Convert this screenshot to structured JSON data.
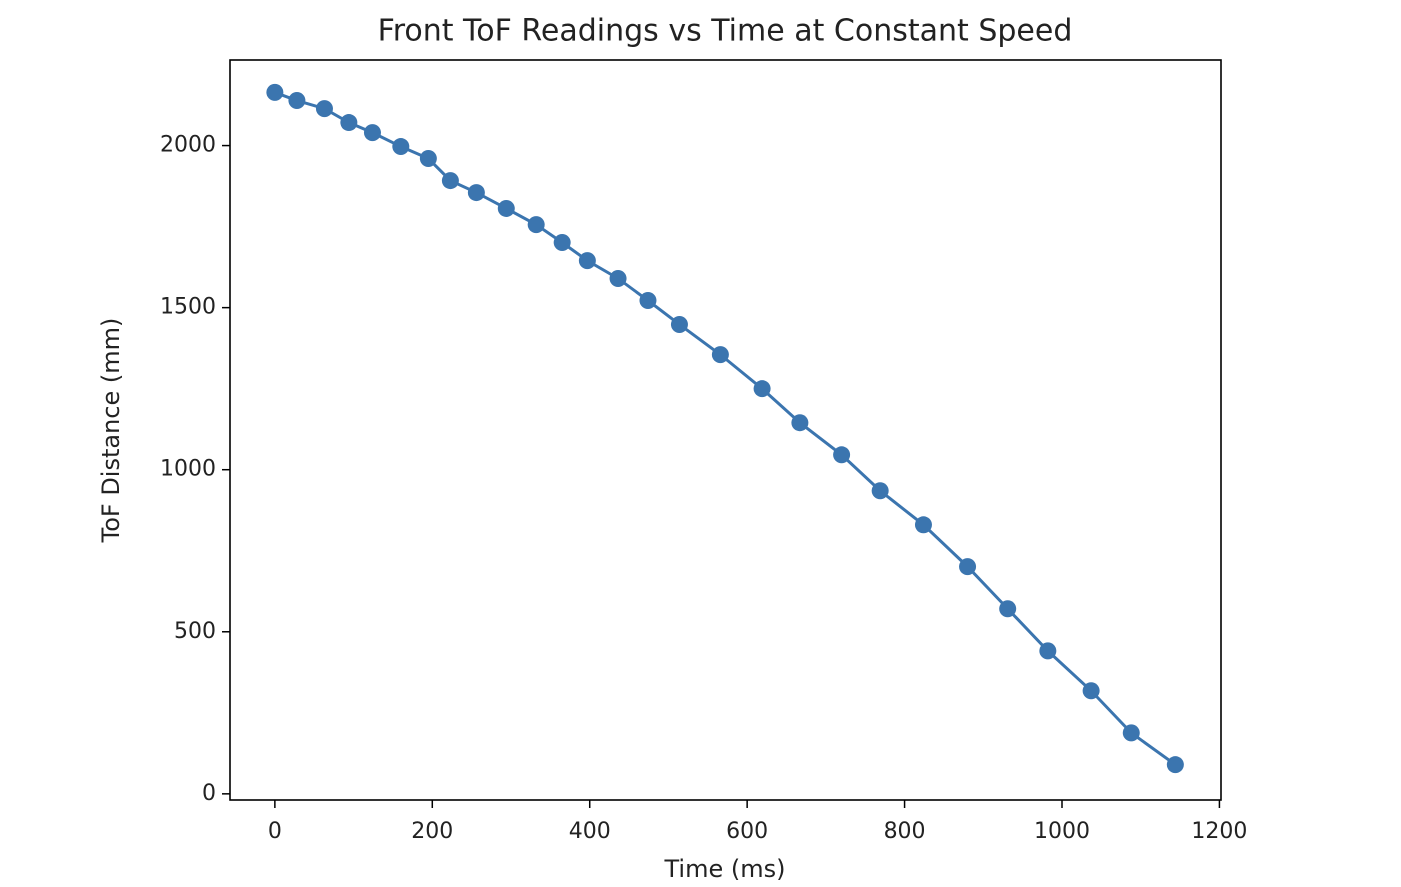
{
  "chart_data": {
    "type": "line",
    "title": "Front ToF Readings vs Time at Constant Speed",
    "xlabel": "Time (ms)",
    "ylabel": "ToF Distance (mm)",
    "x": [
      0,
      28,
      63,
      94,
      124,
      160,
      195,
      223,
      256,
      294,
      332,
      365,
      397,
      436,
      474,
      514,
      566,
      619,
      667,
      720,
      769,
      824,
      880,
      931,
      982,
      1037,
      1088,
      1144
    ],
    "series": [
      {
        "color": "#3b75af",
        "values": [
          2164,
          2139,
          2114,
          2071,
          2040,
          1997,
          1960,
          1892,
          1855,
          1806,
          1756,
          1701,
          1645,
          1590,
          1522,
          1448,
          1355,
          1250,
          1145,
          1046,
          935,
          830,
          701,
          571,
          441,
          318,
          188,
          90
        ]
      }
    ],
    "xlim": [
      -57,
      1202
    ],
    "ylim": [
      -19,
      2264
    ],
    "xticks": [
      0,
      200,
      400,
      600,
      800,
      1000,
      1200
    ],
    "yticks": [
      0,
      500,
      1000,
      1500,
      2000
    ]
  }
}
